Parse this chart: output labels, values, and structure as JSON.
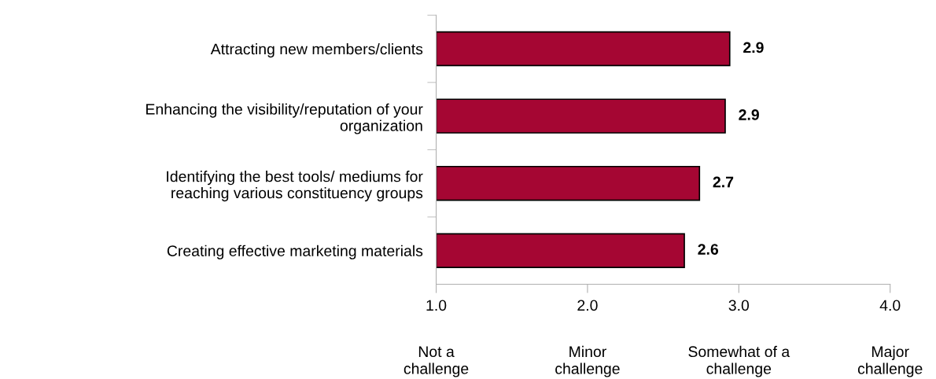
{
  "chart_data": {
    "type": "bar",
    "orientation": "horizontal",
    "categories": [
      "Attracting new members/clients",
      "Enhancing the visibility/reputation of your\norganization",
      "Identifying the best tools/ mediums for\nreaching various constituency groups",
      "Creating effective marketing materials"
    ],
    "values": [
      2.94,
      2.91,
      2.74,
      2.64
    ],
    "value_labels": [
      "2.9",
      "2.9",
      "2.7",
      "2.6"
    ],
    "color": "#a50633",
    "xlim": [
      1,
      4
    ],
    "xticks": [
      {
        "value": 1,
        "label": "1.0"
      },
      {
        "value": 2,
        "label": "2.0"
      },
      {
        "value": 3,
        "label": "3.0"
      },
      {
        "value": 4,
        "label": "4.0"
      }
    ],
    "annotations": [
      "Not a\nchallenge",
      "Minor\nchallenge",
      "Somewhat of a\nchallenge",
      "Major\nchallenge"
    ],
    "grid": false,
    "legend": false
  }
}
